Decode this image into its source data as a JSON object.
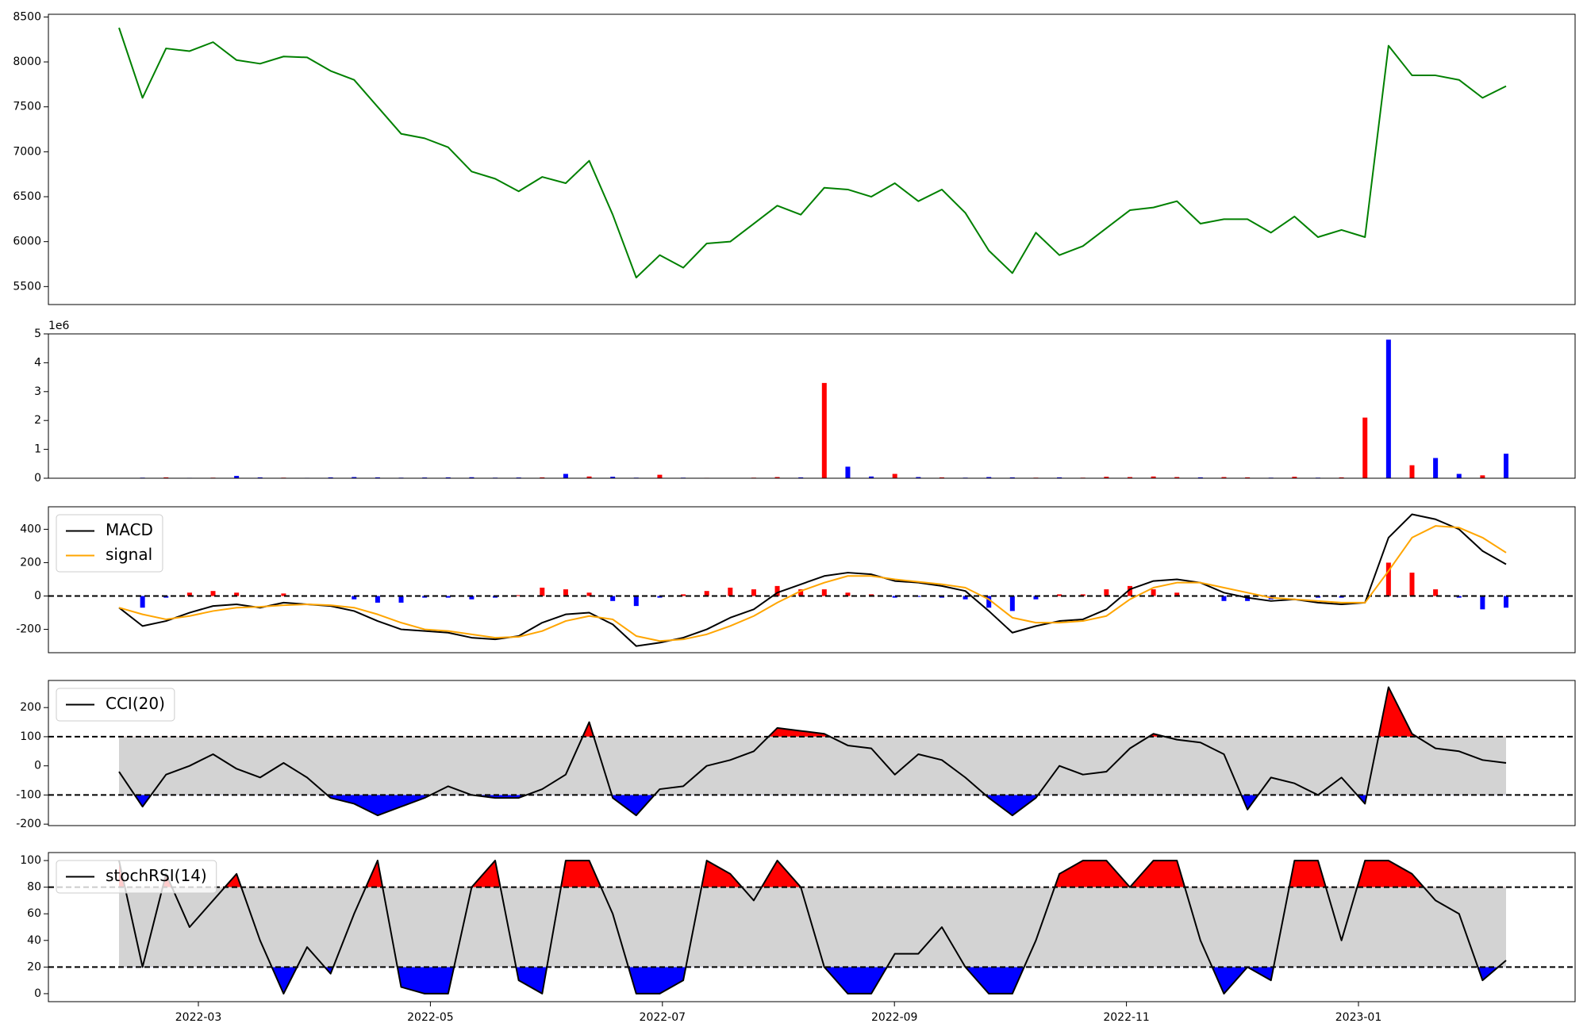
{
  "chart_data": [
    {
      "type": "line",
      "series": [
        {
          "color": "green",
          "values": [
            8380,
            7600,
            8150,
            8120,
            8220,
            8020,
            7980,
            8060,
            8050,
            7900,
            7800,
            7500,
            7200,
            7150,
            7050,
            6780,
            6700,
            6560,
            6720,
            6650,
            6900,
            6300,
            5600,
            5850,
            5710,
            5980,
            6000,
            6200,
            6400,
            6300,
            6600,
            6580,
            6500,
            6650,
            6450,
            6580,
            6320,
            5900,
            5650,
            6100,
            5850,
            5950,
            6150,
            6350,
            6380,
            6450,
            6200,
            6250,
            6250,
            6100,
            6280,
            6050,
            6130,
            6050,
            8180,
            7850,
            7850,
            7800,
            7600,
            7730
          ]
        }
      ],
      "ylim": [
        5300,
        8530
      ],
      "yticks": [
        5500,
        6000,
        6500,
        7000,
        7500,
        8000,
        8500
      ]
    },
    {
      "type": "bar",
      "values": [
        10000,
        20000,
        30000,
        15000,
        20000,
        80000,
        30000,
        20000,
        15000,
        30000,
        40000,
        30000,
        20000,
        25000,
        30000,
        35000,
        20000,
        25000,
        30000,
        150000,
        60000,
        50000,
        20000,
        120000,
        20000,
        15000,
        10000,
        20000,
        40000,
        30000,
        3300000,
        400000,
        60000,
        150000,
        40000,
        30000,
        20000,
        40000,
        30000,
        20000,
        30000,
        20000,
        50000,
        40000,
        60000,
        40000,
        30000,
        40000,
        30000,
        20000,
        50000,
        20000,
        30000,
        2100000,
        4800000,
        450000,
        700000,
        150000,
        100000,
        850000
      ],
      "colors": [
        "red",
        "blue",
        "red",
        "blue",
        "red",
        "blue",
        "blue",
        "red",
        "blue",
        "blue",
        "blue",
        "blue",
        "blue",
        "blue",
        "blue",
        "blue",
        "blue",
        "blue",
        "red",
        "blue",
        "red",
        "blue",
        "blue",
        "red",
        "blue",
        "red",
        "red",
        "red",
        "red",
        "blue",
        "red",
        "blue",
        "blue",
        "red",
        "blue",
        "red",
        "blue",
        "blue",
        "blue",
        "red",
        "blue",
        "red",
        "red",
        "red",
        "red",
        "red",
        "blue",
        "red",
        "red",
        "blue",
        "red",
        "blue",
        "red",
        "red",
        "blue",
        "red",
        "blue",
        "blue",
        "red",
        "blue"
      ],
      "ylim": [
        0,
        5000000
      ],
      "yticks": [
        0,
        {
          "value": 1000000,
          "label": "1"
        },
        {
          "value": 2000000,
          "label": "2"
        },
        {
          "value": 3000000,
          "label": "3"
        },
        {
          "value": 4000000,
          "label": "4"
        },
        {
          "value": 5000000,
          "label": "5"
        }
      ],
      "offset_label": "1e6"
    },
    {
      "type": "line",
      "series": [
        {
          "kind": "bar",
          "pos_color": "red",
          "neg_color": "blue",
          "values": [
            0,
            -70,
            -10,
            20,
            30,
            20,
            -5,
            15,
            0,
            -5,
            -20,
            -40,
            -40,
            -10,
            -10,
            -20,
            -10,
            5,
            50,
            40,
            20,
            -30,
            -60,
            -10,
            10,
            30,
            50,
            40,
            60,
            40,
            40,
            20,
            10,
            -10,
            -5,
            -10,
            -20,
            -70,
            -90,
            -20,
            10,
            10,
            40,
            60,
            40,
            20,
            0,
            -30,
            -30,
            -20,
            0,
            -10,
            -10,
            0,
            200,
            140,
            40,
            -10,
            -80,
            -70
          ]
        },
        {
          "name": "MACD",
          "color": "black",
          "values": [
            -70,
            -180,
            -150,
            -100,
            -60,
            -50,
            -70,
            -40,
            -50,
            -60,
            -90,
            -150,
            -200,
            -210,
            -220,
            -250,
            -260,
            -240,
            -160,
            -110,
            -100,
            -170,
            -300,
            -280,
            -250,
            -200,
            -130,
            -80,
            20,
            70,
            120,
            140,
            130,
            90,
            80,
            60,
            30,
            -90,
            -220,
            -180,
            -150,
            -140,
            -80,
            40,
            90,
            100,
            80,
            20,
            -10,
            -30,
            -20,
            -40,
            -50,
            -40,
            350,
            490,
            460,
            400,
            270,
            190
          ]
        },
        {
          "name": "signal",
          "color": "orange",
          "values": [
            -70,
            -110,
            -140,
            -120,
            -90,
            -70,
            -65,
            -55,
            -50,
            -55,
            -70,
            -110,
            -160,
            -200,
            -210,
            -230,
            -250,
            -245,
            -210,
            -150,
            -120,
            -140,
            -240,
            -270,
            -260,
            -230,
            -180,
            -120,
            -40,
            30,
            80,
            120,
            120,
            100,
            85,
            70,
            50,
            -20,
            -130,
            -160,
            -160,
            -150,
            -120,
            -20,
            50,
            80,
            80,
            50,
            20,
            -10,
            -20,
            -30,
            -40,
            -40,
            150,
            350,
            420,
            410,
            350,
            260
          ]
        }
      ],
      "hlines": [
        0
      ],
      "legend": "upper left",
      "ylim": [
        -340,
        535
      ],
      "yticks": [
        -200,
        0,
        200,
        400
      ]
    },
    {
      "type": "line",
      "series": [
        {
          "name": "CCI(20)",
          "color": "black",
          "values": [
            -20,
            -140,
            -30,
            0,
            40,
            -10,
            -40,
            10,
            -40,
            -110,
            -130,
            -170,
            -140,
            -110,
            -70,
            -100,
            -110,
            -110,
            -80,
            -30,
            150,
            -110,
            -170,
            -80,
            -70,
            0,
            20,
            50,
            130,
            120,
            110,
            70,
            60,
            -30,
            40,
            20,
            -40,
            -110,
            -170,
            -110,
            0,
            -30,
            -20,
            60,
            110,
            90,
            80,
            40,
            -150,
            -40,
            -60,
            -100,
            -40,
            -130,
            270,
            110,
            60,
            50,
            20,
            10
          ]
        }
      ],
      "band": [
        -100,
        100
      ],
      "band_color": "lightgray",
      "above_color": "red",
      "below_color": "blue",
      "legend": "upper left",
      "ylim": [
        -205,
        293
      ],
      "yticks": [
        -200,
        -100,
        0,
        100,
        200
      ]
    },
    {
      "type": "line",
      "series": [
        {
          "name": "stochRSI(14)",
          "color": "black",
          "values": [
            100,
            20,
            90,
            50,
            70,
            90,
            40,
            0,
            35,
            15,
            60,
            100,
            5,
            0,
            0,
            80,
            100,
            10,
            0,
            100,
            100,
            60,
            0,
            0,
            10,
            100,
            90,
            70,
            100,
            80,
            20,
            0,
            0,
            30,
            30,
            50,
            20,
            0,
            0,
            40,
            90,
            100,
            100,
            80,
            100,
            100,
            40,
            0,
            20,
            10,
            100,
            100,
            40,
            100,
            100,
            90,
            70,
            60,
            10,
            25
          ]
        }
      ],
      "band": [
        20,
        80
      ],
      "band_color": "lightgray",
      "above_color": "red",
      "below_color": "blue",
      "legend": "upper left",
      "ylim": [
        -6,
        106
      ],
      "yticks": [
        0,
        20,
        40,
        60,
        80,
        100
      ],
      "xticks": [
        "2022-03",
        "2022-05",
        "2022-07",
        "2022-09",
        "2022-11",
        "2023-01"
      ]
    }
  ]
}
